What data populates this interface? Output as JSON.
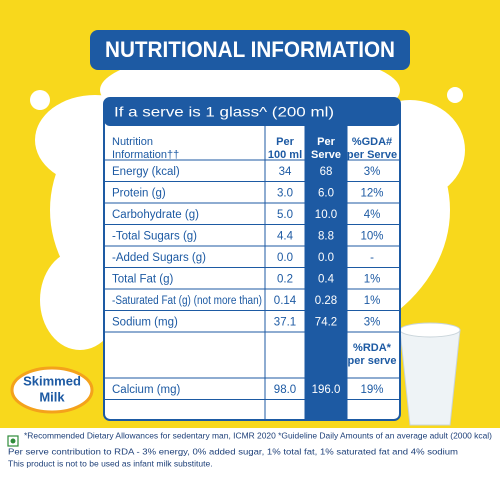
{
  "title": "NUTRITIONAL INFORMATION",
  "serve_note": "If a serve is 1 glass^ (200 ml)",
  "table": {
    "headers": [
      [
        "Nutrition",
        "Information††"
      ],
      [
        "Per",
        "100 ml"
      ],
      [
        "Per",
        "Serve"
      ],
      [
        "%GDA#",
        "per Serve"
      ]
    ],
    "rows": [
      [
        "Energy (kcal)",
        "34",
        "68",
        "3%"
      ],
      [
        "Protein (g)",
        "3.0",
        "6.0",
        "12%"
      ],
      [
        "Carbohydrate (g)",
        "5.0",
        "10.0",
        "4%"
      ],
      [
        "-Total Sugars (g)",
        "4.4",
        "8.8",
        "10%"
      ],
      [
        "-Added Sugars (g)",
        "0.0",
        "0.0",
        "-"
      ],
      [
        "Total Fat (g)",
        "0.2",
        "0.4",
        "1%"
      ],
      [
        "-Saturated Fat (g) (not more than)",
        "0.14",
        "0.28",
        "1%"
      ],
      [
        "Sodium (mg)",
        "37.1",
        "74.2",
        "3%"
      ]
    ],
    "rda_header": [
      "%RDA*",
      "per serve"
    ],
    "rda_rows": [
      [
        "Calcium (mg)",
        "98.0",
        "196.0",
        "19%"
      ]
    ]
  },
  "badge": [
    "Skimmed",
    "Milk"
  ],
  "footnotes": [
    "*Recommended Dietary Allowances for sedentary man, ICMR 2020 *Guideline Daily Amounts of an average adult (2000 kcal)",
    "Per serve contribution to RDA - 3% energy, 0% added sugar, 1% total fat, 1% saturated fat and 4% sodium",
    "This product is not to be used as infant milk substitute."
  ]
}
